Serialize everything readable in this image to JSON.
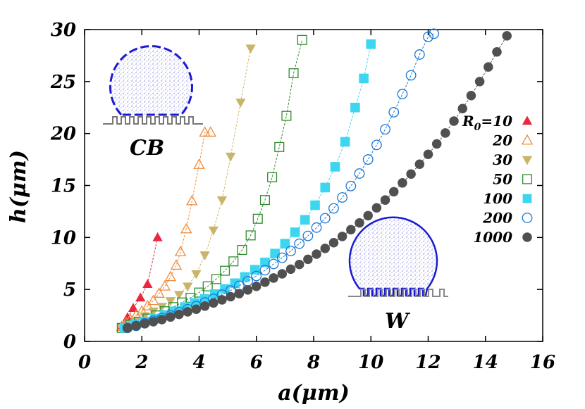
{
  "chart_data": {
    "type": "scatter",
    "xlabel": "a(μm)",
    "ylabel": "h(μm)",
    "xlim": [
      0,
      16
    ],
    "ylim": [
      0,
      30
    ],
    "xticks": [
      0,
      2,
      4,
      6,
      8,
      10,
      12,
      14,
      16
    ],
    "yticks": [
      0,
      5,
      10,
      15,
      20,
      25,
      30
    ],
    "legend_position": "right",
    "insets": [
      {
        "label": "CB",
        "state": "Cassie-Baxter droplet",
        "color": "#1a1ad4",
        "position": "top-left"
      },
      {
        "label": "W",
        "state": "Wenzel droplet",
        "color": "#1a1ad4",
        "position": "bottom-right"
      }
    ],
    "series": [
      {
        "name": "R0=10",
        "legend_main": "R",
        "legend_sub": "0",
        "legend_suffix": "=10",
        "marker": "triangle-up-filled",
        "color": "#e8283c",
        "x": [
          1.3,
          1.5,
          1.7,
          1.95,
          2.2,
          2.55
        ],
        "y": [
          1.5,
          2.3,
          3.2,
          4.2,
          5.5,
          10.0
        ]
      },
      {
        "name": "20",
        "marker": "triangle-up-open",
        "color": "#f08a3a",
        "x": [
          1.3,
          1.45,
          1.6,
          1.8,
          2.0,
          2.2,
          2.4,
          2.6,
          2.8,
          3.0,
          3.2,
          3.35,
          3.55,
          3.75,
          4.0,
          4.2,
          4.4
        ],
        "y": [
          1.4,
          1.75,
          2.1,
          2.5,
          2.9,
          3.4,
          3.9,
          4.6,
          5.3,
          6.2,
          7.3,
          8.6,
          10.8,
          13.5,
          17.0,
          20.1,
          20.1
        ]
      },
      {
        "name": "30",
        "marker": "triangle-down-filled",
        "color": "#c9b56a",
        "x": [
          1.3,
          1.55,
          1.8,
          2.1,
          2.4,
          2.7,
          3.0,
          3.3,
          3.6,
          3.9,
          4.2,
          4.5,
          4.8,
          5.1,
          5.45,
          5.8
        ],
        "y": [
          1.35,
          1.7,
          2.0,
          2.45,
          2.9,
          3.35,
          3.9,
          4.5,
          5.3,
          6.5,
          8.3,
          10.7,
          13.6,
          17.8,
          23.0,
          28.2
        ]
      },
      {
        "name": "50",
        "marker": "square-open",
        "color": "#2e8b2e",
        "x": [
          1.3,
          1.6,
          1.9,
          2.2,
          2.5,
          2.8,
          3.1,
          3.4,
          3.7,
          4.0,
          4.3,
          4.6,
          4.9,
          5.2,
          5.5,
          5.8,
          6.05,
          6.3,
          6.55,
          6.8,
          7.05,
          7.3,
          7.6
        ],
        "y": [
          1.3,
          1.6,
          1.9,
          2.2,
          2.5,
          2.9,
          3.3,
          3.75,
          4.2,
          4.7,
          5.3,
          6.0,
          6.8,
          7.7,
          8.8,
          10.2,
          11.8,
          13.6,
          15.8,
          18.7,
          21.7,
          25.8,
          29.0
        ]
      },
      {
        "name": "100",
        "marker": "square-filled",
        "color": "#3dd6f0",
        "x": [
          1.4,
          1.75,
          2.1,
          2.45,
          2.8,
          3.15,
          3.5,
          3.85,
          4.2,
          4.55,
          4.9,
          5.25,
          5.6,
          5.95,
          6.3,
          6.65,
          7.0,
          7.35,
          7.7,
          8.05,
          8.4,
          8.75,
          9.1,
          9.45,
          9.75,
          10.0
        ],
        "y": [
          1.3,
          1.6,
          1.9,
          2.2,
          2.55,
          2.9,
          3.3,
          3.7,
          4.1,
          4.55,
          5.05,
          5.6,
          6.2,
          6.9,
          7.6,
          8.45,
          9.4,
          10.5,
          11.7,
          13.1,
          14.8,
          16.8,
          19.2,
          22.5,
          25.3,
          28.6
        ]
      },
      {
        "name": "200",
        "marker": "circle-open",
        "color": "#1a78d4",
        "x": [
          1.5,
          1.8,
          2.1,
          2.4,
          2.7,
          3.0,
          3.3,
          3.6,
          3.9,
          4.2,
          4.5,
          4.8,
          5.1,
          5.4,
          5.7,
          6.0,
          6.3,
          6.6,
          6.9,
          7.2,
          7.5,
          7.8,
          8.1,
          8.4,
          8.7,
          9.0,
          9.3,
          9.6,
          9.9,
          10.2,
          10.5,
          10.8,
          11.1,
          11.4,
          11.7,
          12.0,
          12.2
        ],
        "y": [
          1.3,
          1.5,
          1.75,
          2.0,
          2.25,
          2.5,
          2.8,
          3.1,
          3.4,
          3.75,
          4.1,
          4.5,
          4.9,
          5.35,
          5.8,
          6.3,
          6.85,
          7.45,
          8.05,
          8.7,
          9.4,
          10.15,
          10.95,
          11.85,
          12.8,
          13.85,
          14.95,
          16.15,
          17.5,
          18.9,
          20.4,
          22.05,
          23.8,
          25.6,
          27.6,
          29.3,
          29.6
        ]
      },
      {
        "name": "1000",
        "marker": "circle-filled",
        "color": "#505050",
        "x": [
          1.5,
          1.8,
          2.1,
          2.4,
          2.7,
          3.0,
          3.3,
          3.6,
          3.9,
          4.2,
          4.5,
          4.8,
          5.1,
          5.4,
          5.7,
          6.0,
          6.3,
          6.6,
          6.9,
          7.2,
          7.5,
          7.8,
          8.1,
          8.4,
          8.7,
          9.0,
          9.3,
          9.6,
          9.9,
          10.2,
          10.5,
          10.8,
          11.1,
          11.4,
          11.7,
          12.0,
          12.3,
          12.6,
          12.9,
          13.2,
          13.5,
          13.8,
          14.1,
          14.4,
          14.75
        ],
        "y": [
          1.3,
          1.5,
          1.7,
          1.9,
          2.1,
          2.35,
          2.6,
          2.85,
          3.1,
          3.4,
          3.7,
          4.0,
          4.3,
          4.6,
          4.95,
          5.3,
          5.7,
          6.1,
          6.5,
          6.95,
          7.4,
          7.9,
          8.4,
          8.95,
          9.5,
          10.1,
          10.75,
          11.4,
          12.1,
          12.85,
          13.6,
          14.4,
          15.25,
          16.1,
          17.05,
          18.0,
          19.0,
          20.05,
          21.2,
          22.4,
          23.65,
          25.0,
          26.4,
          27.85,
          29.4
        ]
      }
    ]
  }
}
